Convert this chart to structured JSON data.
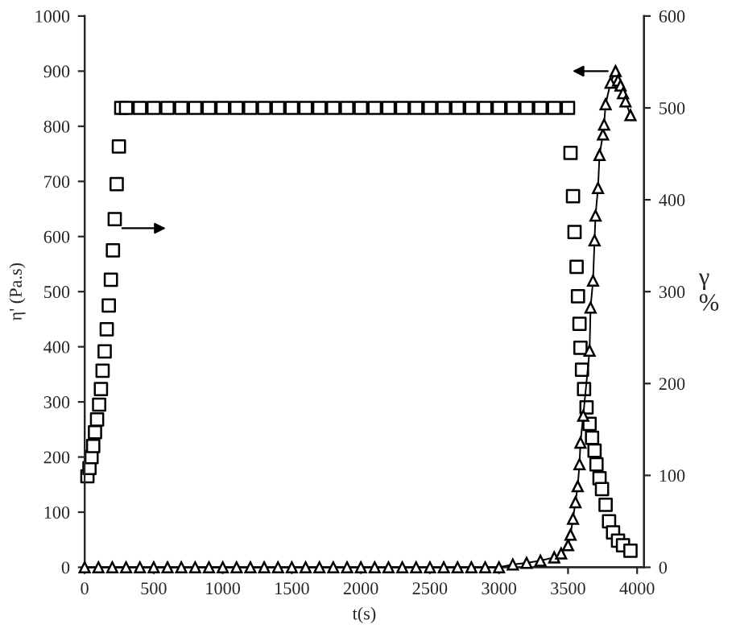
{
  "chart_data": {
    "type": "line",
    "xlabel": "t(s)",
    "ylabel": "η' (Pa.s)",
    "y2label": "γ\n%",
    "xlim": [
      0,
      4050
    ],
    "xticks": [
      0,
      500,
      1000,
      1500,
      2000,
      2500,
      3000,
      3500,
      4000
    ],
    "ylim": [
      0,
      1000
    ],
    "yticks": [
      0,
      100,
      200,
      300,
      400,
      500,
      600,
      700,
      800,
      900,
      1000
    ],
    "y2lim": [
      0,
      600
    ],
    "y2ticks": [
      0,
      100,
      200,
      300,
      400,
      500,
      600
    ],
    "grid": false,
    "legend": false,
    "series": [
      {
        "type": "scatter",
        "axis": "y2",
        "marker": "square",
        "color": "#000000",
        "x": [
          20,
          35,
          50,
          62,
          75,
          90,
          105,
          118,
          130,
          145,
          160,
          175,
          190,
          205,
          218,
          232,
          248,
          265,
          300,
          400,
          500,
          600,
          700,
          800,
          900,
          1000,
          1100,
          1200,
          1300,
          1400,
          1500,
          1600,
          1700,
          1800,
          1900,
          2000,
          2100,
          2200,
          2300,
          2400,
          2500,
          2600,
          2700,
          2800,
          2900,
          3000,
          3100,
          3200,
          3300,
          3400,
          3500,
          3518,
          3536,
          3547,
          3562,
          3572,
          3583,
          3590,
          3601,
          3616,
          3634,
          3656,
          3674,
          3692,
          3706,
          3728,
          3746,
          3772,
          3797,
          3826,
          3862,
          3898,
          3952
        ],
        "values": [
          99,
          108,
          120,
          132,
          147,
          161,
          177,
          194,
          214,
          235,
          259,
          285,
          313,
          345,
          379,
          417,
          458,
          500,
          500,
          500,
          500,
          500,
          500,
          500,
          500,
          500,
          500,
          500,
          500,
          500,
          500,
          500,
          500,
          500,
          500,
          500,
          500,
          500,
          500,
          500,
          500,
          500,
          500,
          500,
          500,
          500,
          500,
          500,
          500,
          500,
          500,
          451,
          404,
          365,
          327,
          295,
          265,
          239,
          215,
          194,
          174,
          156,
          141,
          127,
          112,
          97,
          85,
          68,
          50,
          38,
          29,
          24,
          18
        ]
      },
      {
        "marker": "triangle",
        "color": "#000000",
        "x": [
          0,
          100,
          200,
          300,
          400,
          500,
          600,
          700,
          800,
          900,
          1000,
          1100,
          1200,
          1300,
          1400,
          1500,
          1600,
          1700,
          1800,
          1900,
          2000,
          2100,
          2200,
          2300,
          2400,
          2500,
          2600,
          2700,
          2800,
          2900,
          3000,
          3100,
          3200,
          3300,
          3400,
          3450,
          3500,
          3518,
          3536,
          3554,
          3570,
          3583,
          3590,
          3610,
          3656,
          3663,
          3681,
          3692,
          3699,
          3717,
          3728,
          3753,
          3761,
          3772,
          3808,
          3844,
          3862,
          3880,
          3898,
          3916,
          3952
        ],
        "values": [
          0,
          0,
          0,
          0,
          0,
          0,
          0,
          0,
          0,
          0,
          0,
          0,
          0,
          0,
          0,
          0,
          0,
          0,
          0,
          0,
          0,
          0,
          0,
          0,
          0,
          0,
          0,
          0,
          0,
          0,
          0,
          5,
          8,
          12,
          18,
          25,
          40,
          59,
          88,
          118,
          147,
          187,
          226,
          275,
          393,
          471,
          520,
          593,
          638,
          688,
          748,
          785,
          803,
          840,
          879,
          900,
          883,
          874,
          860,
          845,
          820
        ]
      }
    ]
  }
}
